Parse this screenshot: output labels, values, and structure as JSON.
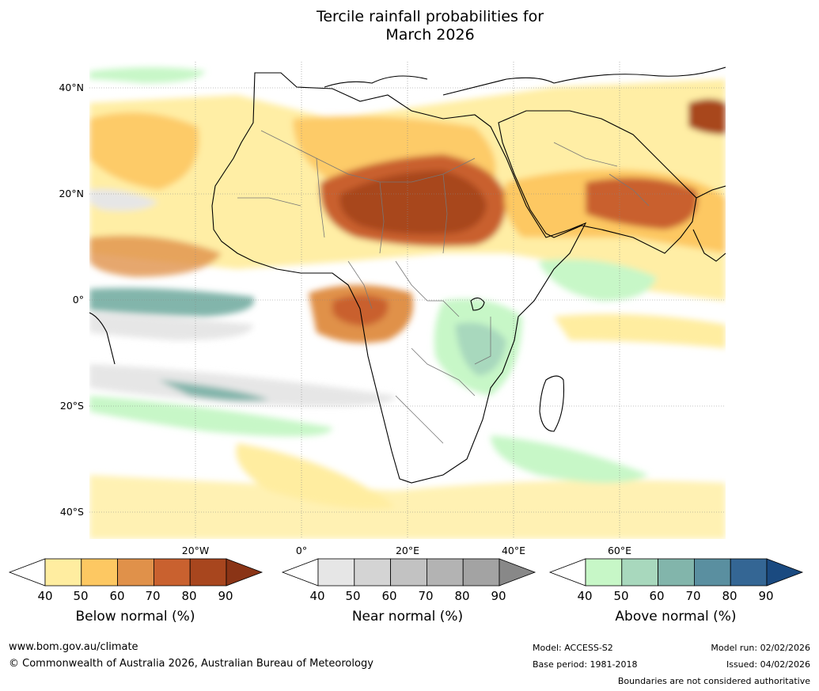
{
  "title": {
    "line1": "Tercile rainfall probabilities for",
    "line2": "March 2026"
  },
  "map": {
    "region": "Africa and surrounding oceans",
    "lat_labels": [
      "40°N",
      "20°N",
      "0°",
      "20°S",
      "40°S"
    ],
    "lon_labels": [
      "20°W",
      "0°",
      "20°E",
      "40°E",
      "60°E"
    ]
  },
  "legends": [
    {
      "label": "Below normal (%)",
      "ticks": [
        "40",
        "50",
        "60",
        "70",
        "80",
        "90"
      ],
      "colors": [
        "#ffeda0",
        "#fdc862",
        "#e0914a",
        "#c9612f",
        "#a8461e",
        "#8a3416"
      ]
    },
    {
      "label": "Near normal (%)",
      "ticks": [
        "40",
        "50",
        "60",
        "70",
        "80",
        "90"
      ],
      "colors": [
        "#e6e6e6",
        "#d4d4d4",
        "#c2c2c2",
        "#b3b3b3",
        "#a3a3a3",
        "#888888"
      ]
    },
    {
      "label": "Above normal (%)",
      "ticks": [
        "40",
        "50",
        "60",
        "70",
        "80",
        "90"
      ],
      "colors": [
        "#c7f7c7",
        "#a8d8bd",
        "#82b5ab",
        "#5a8fa0",
        "#346694",
        "#1a4a80"
      ]
    }
  ],
  "footer": {
    "website": "www.bom.gov.au/climate",
    "copyright": "© Commonwealth of Australia 2026, Australian Bureau of Meteorology",
    "model": "Model: ACCESS-S2",
    "base_period": "Base period: 1981-2018",
    "model_run": "Model run: 02/02/2026",
    "issued": "Issued: 04/02/2026",
    "disclaimer": "Boundaries are not considered authoritative"
  }
}
